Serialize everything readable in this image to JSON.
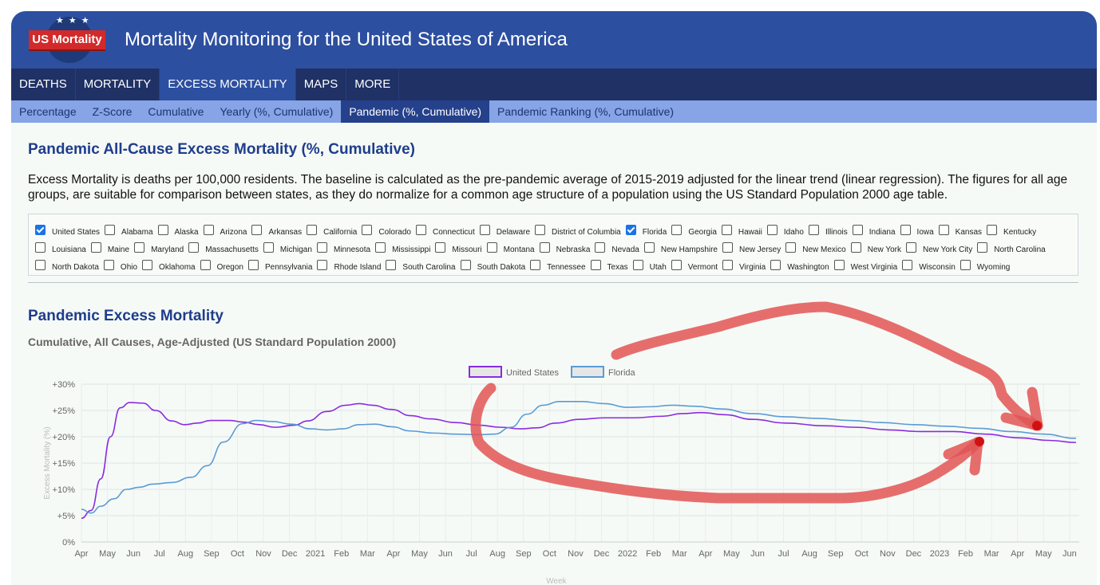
{
  "header": {
    "logo_text": "US Mortality",
    "logo_stars": "★★★",
    "title": "Mortality Monitoring for the United States of America"
  },
  "nav": [
    {
      "label": "DEATHS",
      "active": false
    },
    {
      "label": "MORTALITY",
      "active": false
    },
    {
      "label": "EXCESS MORTALITY",
      "active": true
    },
    {
      "label": "MAPS",
      "active": false
    },
    {
      "label": "MORE",
      "active": false
    }
  ],
  "subnav": [
    {
      "label": "Percentage",
      "active": false
    },
    {
      "label": "Z-Score",
      "active": false
    },
    {
      "label": "Cumulative",
      "active": false
    },
    {
      "label": "Yearly (%, Cumulative)",
      "active": false
    },
    {
      "label": "Pandemic (%, Cumulative)",
      "active": true
    },
    {
      "label": "Pandemic Ranking (%, Cumulative)",
      "active": false
    }
  ],
  "page": {
    "title": "Pandemic All-Cause Excess Mortality (%, Cumulative)",
    "description": "Excess Mortality is deaths per 100,000 residents. The baseline is calculated as the pre-pandemic average of 2015-2019 adjusted for the linear trend (linear regression). The figures for all age groups, are suitable for comparison between states, as they do normalize for a common age structure of a population using the US Standard Population 2000 age table."
  },
  "states": [
    {
      "name": "United States",
      "checked": true
    },
    {
      "name": "Alabama",
      "checked": false
    },
    {
      "name": "Alaska",
      "checked": false
    },
    {
      "name": "Arizona",
      "checked": false
    },
    {
      "name": "Arkansas",
      "checked": false
    },
    {
      "name": "California",
      "checked": false
    },
    {
      "name": "Colorado",
      "checked": false
    },
    {
      "name": "Connecticut",
      "checked": false
    },
    {
      "name": "Delaware",
      "checked": false
    },
    {
      "name": "District of Columbia",
      "checked": false
    },
    {
      "name": "Florida",
      "checked": true
    },
    {
      "name": "Georgia",
      "checked": false
    },
    {
      "name": "Hawaii",
      "checked": false
    },
    {
      "name": "Idaho",
      "checked": false
    },
    {
      "name": "Illinois",
      "checked": false
    },
    {
      "name": "Indiana",
      "checked": false
    },
    {
      "name": "Iowa",
      "checked": false
    },
    {
      "name": "Kansas",
      "checked": false
    },
    {
      "name": "Kentucky",
      "checked": false
    },
    {
      "name": "Louisiana",
      "checked": false
    },
    {
      "name": "Maine",
      "checked": false
    },
    {
      "name": "Maryland",
      "checked": false
    },
    {
      "name": "Massachusetts",
      "checked": false
    },
    {
      "name": "Michigan",
      "checked": false
    },
    {
      "name": "Minnesota",
      "checked": false
    },
    {
      "name": "Mississippi",
      "checked": false
    },
    {
      "name": "Missouri",
      "checked": false
    },
    {
      "name": "Montana",
      "checked": false
    },
    {
      "name": "Nebraska",
      "checked": false
    },
    {
      "name": "Nevada",
      "checked": false
    },
    {
      "name": "New Hampshire",
      "checked": false
    },
    {
      "name": "New Jersey",
      "checked": false
    },
    {
      "name": "New Mexico",
      "checked": false
    },
    {
      "name": "New York",
      "checked": false
    },
    {
      "name": "New York City",
      "checked": false
    },
    {
      "name": "North Carolina",
      "checked": false
    },
    {
      "name": "North Dakota",
      "checked": false
    },
    {
      "name": "Ohio",
      "checked": false
    },
    {
      "name": "Oklahoma",
      "checked": false
    },
    {
      "name": "Oregon",
      "checked": false
    },
    {
      "name": "Pennsylvania",
      "checked": false
    },
    {
      "name": "Rhode Island",
      "checked": false
    },
    {
      "name": "South Carolina",
      "checked": false
    },
    {
      "name": "South Dakota",
      "checked": false
    },
    {
      "name": "Tennessee",
      "checked": false
    },
    {
      "name": "Texas",
      "checked": false
    },
    {
      "name": "Utah",
      "checked": false
    },
    {
      "name": "Vermont",
      "checked": false
    },
    {
      "name": "Virginia",
      "checked": false
    },
    {
      "name": "Washington",
      "checked": false
    },
    {
      "name": "West Virginia",
      "checked": false
    },
    {
      "name": "Wisconsin",
      "checked": false
    },
    {
      "name": "Wyoming",
      "checked": false
    }
  ],
  "chart_section": {
    "title": "Pandemic Excess Mortality",
    "subtitle": "Cumulative, All Causes, Age-Adjusted (US Standard Population 2000)"
  },
  "chart_data": {
    "type": "line",
    "ylabel": "Excess Mortality (%)",
    "xlabel": "Week",
    "ylim": [
      0,
      30
    ],
    "yticks": [
      "0%",
      "+5%",
      "+10%",
      "+15%",
      "+20%",
      "+25%",
      "+30%"
    ],
    "x_tick_labels": [
      "Apr",
      "May",
      "Jun",
      "Jul",
      "Aug",
      "Sep",
      "Oct",
      "Nov",
      "Dec",
      "2021",
      "Feb",
      "Mar",
      "Apr",
      "May",
      "Jun",
      "Jul",
      "Aug",
      "Sep",
      "Oct",
      "Nov",
      "Dec",
      "2022",
      "Feb",
      "Mar",
      "Apr",
      "May",
      "Jun",
      "Jul",
      "Aug",
      "Sep",
      "Oct",
      "Nov",
      "Dec",
      "2023",
      "Feb",
      "Mar",
      "Apr",
      "May",
      "Jun"
    ],
    "grid": true,
    "legend_position": "top-center",
    "x_unit": "months since Apr 2020",
    "series": [
      {
        "name": "United States",
        "color": "#8a2be2",
        "points": [
          [
            0,
            4.5
          ],
          [
            0.3,
            6
          ],
          [
            0.6,
            12
          ],
          [
            0.9,
            20
          ],
          [
            1.2,
            25.5
          ],
          [
            1.5,
            26.5
          ],
          [
            1.9,
            26.4
          ],
          [
            2.3,
            25
          ],
          [
            2.8,
            23
          ],
          [
            3.2,
            22.3
          ],
          [
            3.6,
            22.6
          ],
          [
            4,
            23.1
          ],
          [
            4.6,
            23.1
          ],
          [
            5,
            22.8
          ],
          [
            5.5,
            22.3
          ],
          [
            6,
            21.8
          ],
          [
            6.6,
            22.2
          ],
          [
            7,
            23
          ],
          [
            7.6,
            24.8
          ],
          [
            8.2,
            26
          ],
          [
            8.6,
            26.3
          ],
          [
            9,
            26
          ],
          [
            9.6,
            25.2
          ],
          [
            10.2,
            24
          ],
          [
            10.8,
            23.4
          ],
          [
            11.6,
            22.7
          ],
          [
            12.3,
            22.2
          ],
          [
            13,
            21.8
          ],
          [
            13.6,
            21.5
          ],
          [
            14.1,
            21.7
          ],
          [
            14.7,
            22.6
          ],
          [
            15.4,
            23.3
          ],
          [
            16.2,
            23.6
          ],
          [
            17.1,
            23.6
          ],
          [
            18,
            23.9
          ],
          [
            18.6,
            24.4
          ],
          [
            19.2,
            24.6
          ],
          [
            19.9,
            24.2
          ],
          [
            20.8,
            23.3
          ],
          [
            21.8,
            22.6
          ],
          [
            23,
            22.1
          ],
          [
            24,
            21.8
          ],
          [
            25,
            21.3
          ],
          [
            26,
            21
          ],
          [
            27,
            21
          ],
          [
            28,
            20.5
          ],
          [
            29,
            19.8
          ],
          [
            30,
            19.3
          ],
          [
            30.8,
            18.9
          ]
        ]
      },
      {
        "name": "Florida",
        "color": "#5b9bd5",
        "points": [
          [
            0,
            6.2
          ],
          [
            0.3,
            5.5
          ],
          [
            0.6,
            6.8
          ],
          [
            1,
            8.2
          ],
          [
            1.4,
            10
          ],
          [
            1.8,
            10.4
          ],
          [
            2.2,
            11
          ],
          [
            2.8,
            11.3
          ],
          [
            3.4,
            12.3
          ],
          [
            3.9,
            14.5
          ],
          [
            4.4,
            19
          ],
          [
            5,
            22.5
          ],
          [
            5.4,
            23.1
          ],
          [
            5.9,
            22.9
          ],
          [
            6.5,
            22.4
          ],
          [
            7.1,
            21.5
          ],
          [
            7.6,
            21.3
          ],
          [
            8.1,
            21.5
          ],
          [
            8.6,
            22.3
          ],
          [
            9.1,
            22.4
          ],
          [
            9.6,
            21.9
          ],
          [
            10.2,
            21.1
          ],
          [
            10.9,
            20.7
          ],
          [
            11.6,
            20.5
          ],
          [
            12.3,
            20.4
          ],
          [
            12.8,
            20.5
          ],
          [
            13.3,
            21.8
          ],
          [
            13.8,
            24.3
          ],
          [
            14.3,
            26
          ],
          [
            14.8,
            26.7
          ],
          [
            15.5,
            26.7
          ],
          [
            16.2,
            26.3
          ],
          [
            16.9,
            25.6
          ],
          [
            17.6,
            25.7
          ],
          [
            18.3,
            26
          ],
          [
            19,
            25.8
          ],
          [
            19.8,
            25.3
          ],
          [
            20.8,
            24.4
          ],
          [
            21.8,
            23.8
          ],
          [
            22.8,
            23.5
          ],
          [
            23.8,
            23.1
          ],
          [
            24.8,
            22.7
          ],
          [
            25.8,
            22.3
          ],
          [
            26.8,
            22
          ],
          [
            27.8,
            21.6
          ],
          [
            28.8,
            21
          ],
          [
            29.8,
            20.5
          ],
          [
            30.8,
            19.7
          ]
        ]
      }
    ]
  }
}
